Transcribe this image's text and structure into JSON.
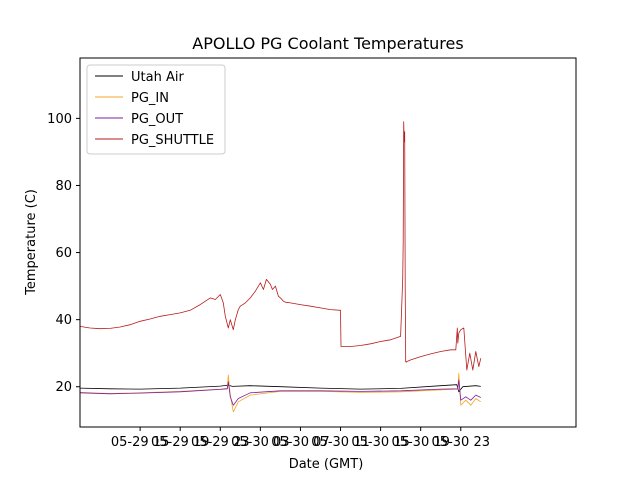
{
  "chart_data": {
    "type": "line",
    "title": "APOLLO PG Coolant Temperatures",
    "xlabel": "Date (GMT)",
    "ylabel": "Temperature (C)",
    "xlim": [
      0,
      49.5
    ],
    "ylim": [
      8,
      118
    ],
    "xticks": [
      {
        "x": 6,
        "label": "05-29 15"
      },
      {
        "x": 10,
        "label": "05-29 19"
      },
      {
        "x": 14,
        "label": "05-29 23"
      },
      {
        "x": 18,
        "label": "05-30 03"
      },
      {
        "x": 22,
        "label": "05-30 07"
      },
      {
        "x": 26,
        "label": "05-30 11"
      },
      {
        "x": 30,
        "label": "05-30 15"
      },
      {
        "x": 34,
        "label": "05-30 19"
      },
      {
        "x": 38,
        "label": "05-30 23"
      }
    ],
    "yticks": [
      {
        "y": 20,
        "label": "20"
      },
      {
        "y": 40,
        "label": "40"
      },
      {
        "y": 60,
        "label": "60"
      },
      {
        "y": 80,
        "label": "80"
      },
      {
        "y": 100,
        "label": "100"
      }
    ],
    "legend_position": "top-left",
    "series": [
      {
        "name": "Utah Air",
        "color": "#000000",
        "x": [
          0,
          3,
          6,
          10,
          14,
          14.8,
          15.2,
          17,
          20,
          24,
          28,
          32,
          36,
          37.6,
          37.8,
          38.2,
          39.5,
          40
        ],
        "y": [
          19.6,
          19.4,
          19.3,
          19.6,
          20.2,
          20.5,
          20.1,
          20.3,
          20.0,
          19.6,
          19.3,
          19.5,
          20.3,
          20.6,
          18.5,
          20.0,
          20.3,
          20.1
        ]
      },
      {
        "name": "PG_IN",
        "color": "#f5a623",
        "x": [
          0,
          3,
          6,
          10,
          14,
          14.7,
          14.8,
          15.0,
          15.3,
          15.8,
          17,
          20,
          24,
          28,
          32,
          36,
          37.7,
          37.8,
          38.0,
          38.5,
          39.0,
          39.5,
          40
        ],
        "y": [
          18.3,
          18.0,
          18.2,
          18.6,
          19.3,
          19.5,
          23.5,
          17.5,
          12.5,
          15.5,
          17.5,
          18.6,
          18.6,
          18.3,
          18.5,
          19.1,
          19.3,
          24.0,
          14.5,
          16.0,
          14.5,
          16.5,
          15.5
        ]
      },
      {
        "name": "PG_OUT",
        "color": "#7b1fa2",
        "x": [
          0,
          3,
          6,
          10,
          14,
          14.7,
          14.8,
          15.0,
          15.3,
          15.8,
          17,
          20,
          24,
          28,
          32,
          36,
          37.7,
          37.8,
          38.0,
          38.5,
          39.0,
          39.5,
          40
        ],
        "y": [
          18.2,
          17.9,
          18.1,
          18.5,
          19.2,
          19.4,
          21.5,
          17.0,
          14.5,
          16.5,
          18.2,
          18.8,
          18.8,
          18.6,
          18.8,
          19.3,
          19.4,
          22.0,
          16.0,
          17.0,
          16.0,
          17.5,
          16.8
        ]
      },
      {
        "name": "PG_SHUTTLE",
        "color": "#b71c1c",
        "x": [
          0,
          1,
          2,
          3,
          4,
          5,
          6,
          7,
          8,
          9,
          10,
          11,
          12,
          12.5,
          13,
          13.5,
          14,
          14.3,
          14.5,
          14.8,
          15.0,
          15.3,
          15.5,
          15.8,
          16.0,
          16.5,
          17,
          17.5,
          18,
          18.3,
          18.6,
          19.0,
          19.2,
          19.5,
          19.8,
          20.0,
          20.3,
          20.5,
          21,
          22,
          23,
          24,
          25,
          26,
          26.05,
          27,
          28,
          29,
          30,
          31,
          32,
          32.2,
          32.25,
          32.3,
          32.35,
          32.4,
          32.45,
          32.5,
          32.55,
          32.6,
          33,
          34,
          35,
          36,
          37,
          37.5,
          37.65,
          37.7,
          37.8,
          38.0,
          38.3,
          38.6,
          38.9,
          39.2,
          39.5,
          39.8,
          40
        ],
        "y": [
          38.0,
          37.5,
          37.3,
          37.4,
          37.8,
          38.5,
          39.5,
          40.2,
          41.0,
          41.5,
          42.0,
          42.8,
          44.5,
          45.5,
          46.5,
          46.0,
          47.5,
          45.0,
          41.0,
          37.5,
          40.0,
          37.0,
          40.0,
          43.0,
          44.0,
          45.0,
          46.5,
          48.5,
          51.0,
          49.0,
          52.0,
          50.5,
          49.0,
          50.0,
          47.0,
          46.5,
          45.5,
          45.2,
          45.0,
          44.5,
          44.0,
          43.5,
          43.0,
          42.8,
          32.0,
          32.0,
          32.3,
          32.8,
          33.5,
          34.0,
          35.0,
          52.0,
          63.5,
          99.0,
          93.0,
          96.0,
          50.0,
          27.5,
          27.3,
          27.5,
          28.0,
          29.0,
          29.8,
          30.5,
          31.0,
          31.0,
          37.5,
          33.0,
          36.0,
          37.0,
          37.5,
          25.0,
          30.0,
          25.0,
          30.5,
          26.0,
          28.5
        ]
      }
    ]
  }
}
